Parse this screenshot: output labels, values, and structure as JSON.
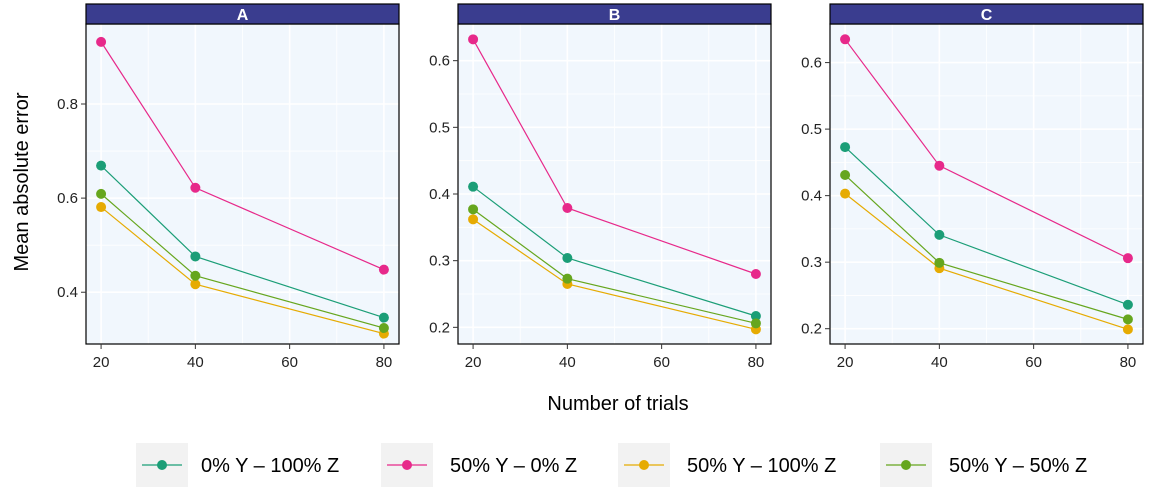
{
  "chart_data": {
    "type": "line",
    "x_label": "Number of trials",
    "y_label": "Mean absolute error",
    "x_ticks": [
      20,
      40,
      60,
      80
    ],
    "colors": {
      "strip_fill": "#3a3d8f",
      "panel_fill": "#f1f7fd",
      "grid": "#ffffff",
      "series": [
        "#1b9e77",
        "#e7298a",
        "#e6ab02",
        "#66a61e"
      ]
    },
    "legend": {
      "position": "bottom",
      "items": [
        "0% Y – 100% Z",
        "50% Y – 0% Z",
        "50% Y – 100% Z",
        "50% Y – 50% Z"
      ]
    },
    "panels": [
      {
        "title": "A",
        "x": [
          20,
          40,
          80
        ],
        "ylim": [
          0.29,
          0.97
        ],
        "xlim": [
          16.8,
          83.2
        ],
        "y_ticks": [
          0.4,
          0.6,
          0.8
        ],
        "y_tick_labels": [
          "0.4",
          "0.6",
          "0.8"
        ],
        "series": [
          {
            "name": "0% Y – 100% Z",
            "values": [
              0.669,
              0.476,
              0.346
            ]
          },
          {
            "name": "50% Y – 0% Z",
            "values": [
              0.932,
              0.622,
              0.448
            ]
          },
          {
            "name": "50% Y – 100% Z",
            "values": [
              0.581,
              0.417,
              0.312
            ]
          },
          {
            "name": "50% Y – 50% Z",
            "values": [
              0.609,
              0.435,
              0.324
            ]
          }
        ]
      },
      {
        "title": "B",
        "x": [
          20,
          40,
          80
        ],
        "ylim": [
          0.175,
          0.655
        ],
        "xlim": [
          16.8,
          83.2
        ],
        "y_ticks": [
          0.2,
          0.3,
          0.4,
          0.5,
          0.6
        ],
        "y_tick_labels": [
          "0.2",
          "0.3",
          "0.4",
          "0.5",
          "0.6"
        ],
        "series": [
          {
            "name": "0% Y – 100% Z",
            "values": [
              0.411,
              0.304,
              0.217
            ]
          },
          {
            "name": "50% Y – 0% Z",
            "values": [
              0.632,
              0.379,
              0.28
            ]
          },
          {
            "name": "50% Y – 100% Z",
            "values": [
              0.362,
              0.265,
              0.197
            ]
          },
          {
            "name": "50% Y – 50% Z",
            "values": [
              0.377,
              0.273,
              0.206
            ]
          }
        ]
      },
      {
        "title": "C",
        "x": [
          20,
          40,
          80
        ],
        "ylim": [
          0.177,
          0.658
        ],
        "xlim": [
          16.8,
          83.2
        ],
        "y_ticks": [
          0.2,
          0.3,
          0.4,
          0.5,
          0.6
        ],
        "y_tick_labels": [
          "0.2",
          "0.3",
          "0.4",
          "0.5",
          "0.6"
        ],
        "series": [
          {
            "name": "0% Y – 100% Z",
            "values": [
              0.473,
              0.341,
              0.236
            ]
          },
          {
            "name": "50% Y – 0% Z",
            "values": [
              0.635,
              0.445,
              0.306
            ]
          },
          {
            "name": "50% Y – 100% Z",
            "values": [
              0.403,
              0.291,
              0.199
            ]
          },
          {
            "name": "50% Y – 50% Z",
            "values": [
              0.431,
              0.299,
              0.214
            ]
          }
        ]
      }
    ]
  }
}
